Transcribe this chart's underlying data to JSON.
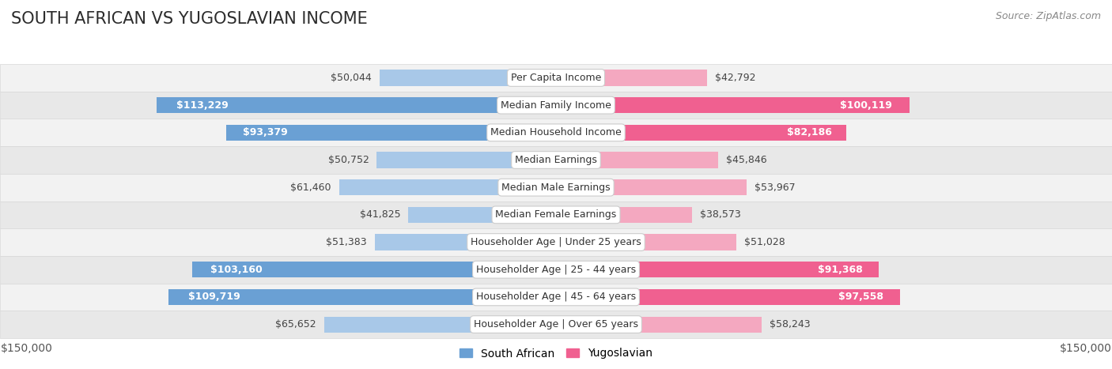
{
  "title": "SOUTH AFRICAN VS YUGOSLAVIAN INCOME",
  "source": "Source: ZipAtlas.com",
  "categories": [
    "Per Capita Income",
    "Median Family Income",
    "Median Household Income",
    "Median Earnings",
    "Median Male Earnings",
    "Median Female Earnings",
    "Householder Age | Under 25 years",
    "Householder Age | 25 - 44 years",
    "Householder Age | 45 - 64 years",
    "Householder Age | Over 65 years"
  ],
  "south_african": [
    50044,
    113229,
    93379,
    50752,
    61460,
    41825,
    51383,
    103160,
    109719,
    65652
  ],
  "yugoslavian": [
    42792,
    100119,
    82186,
    45846,
    53967,
    38573,
    51028,
    91368,
    97558,
    58243
  ],
  "max_val": 150000,
  "blue_color_strong": "#6aa0d4",
  "blue_color_light": "#a8c8e8",
  "pink_color_strong": "#f06090",
  "pink_color_light": "#f4a8c0",
  "row_bg_even": "#f2f2f2",
  "row_bg_odd": "#e8e8e8",
  "row_border": "#d8d8d8",
  "label_box_color": "#ffffff",
  "label_box_edge": "#cccccc",
  "title_fontsize": 15,
  "tick_fontsize": 10,
  "source_fontsize": 9,
  "legend_fontsize": 10,
  "value_fontsize": 9,
  "category_fontsize": 9,
  "sa_threshold": 70000,
  "yu_threshold": 65000
}
